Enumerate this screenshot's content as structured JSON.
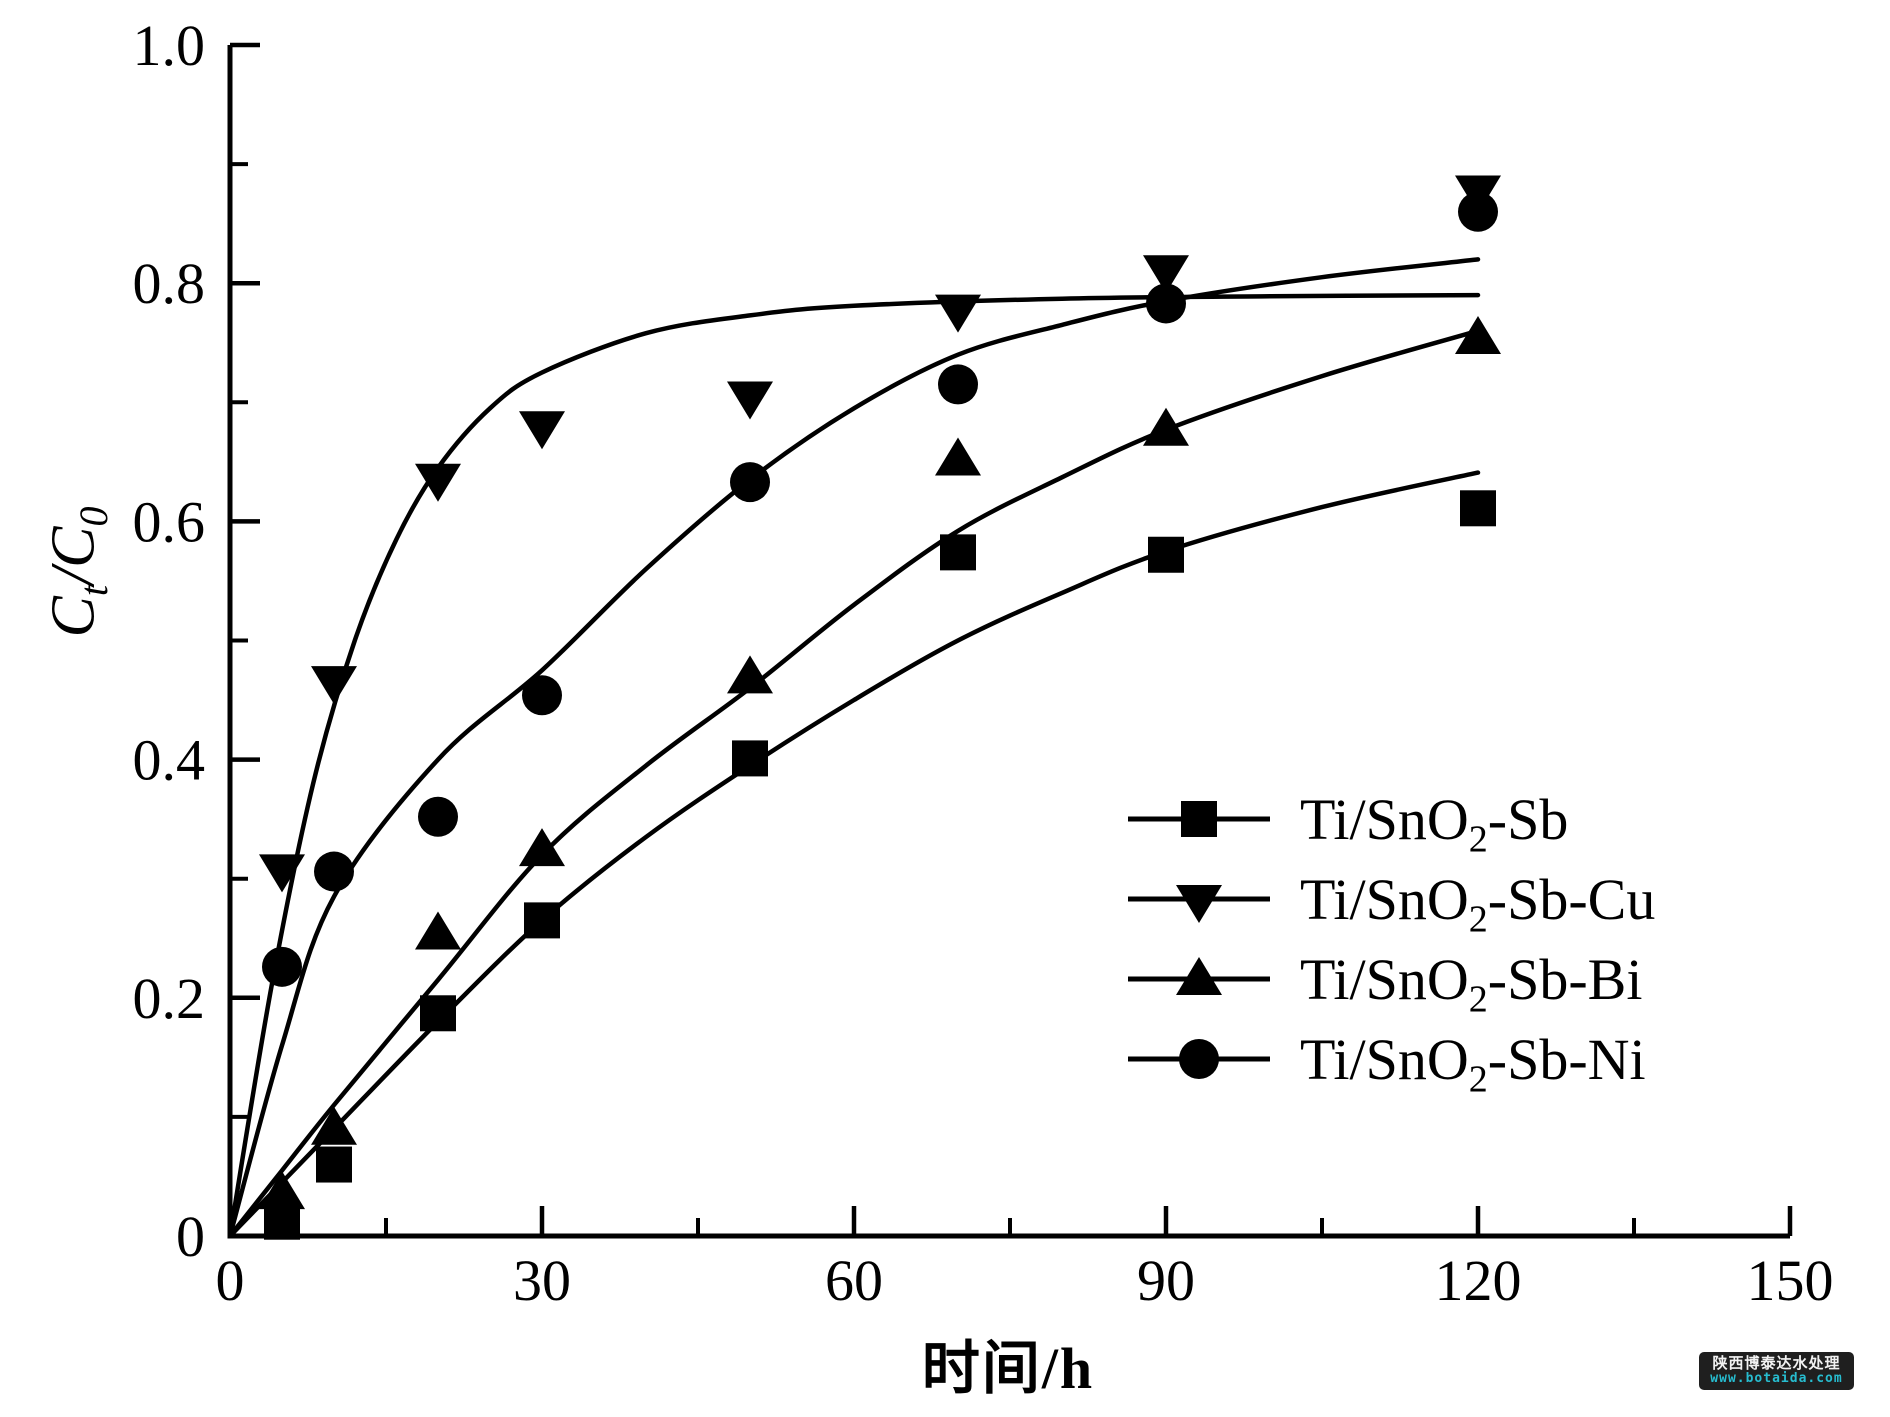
{
  "figure": {
    "background": "#ffffff",
    "ink": "#000000"
  },
  "chart_data": {
    "type": "scatter",
    "title": "",
    "xlabel": "时间/h",
    "ylabel": "Ct/C0",
    "ylabel_parts": {
      "c1": "C",
      "sub1": "t",
      "mid": "/C",
      "sub2": "0"
    },
    "xlim": [
      0,
      150
    ],
    "ylim": [
      0,
      1.0
    ],
    "grid": false,
    "legend_position": "inside-right-middle",
    "xticks": {
      "values": [
        0,
        30,
        60,
        90,
        120,
        150
      ],
      "labels": [
        "0",
        "30",
        "60",
        "90",
        "120",
        "150"
      ],
      "minor": [
        15,
        45,
        75,
        105,
        135
      ]
    },
    "yticks": {
      "values": [
        0,
        0.2,
        0.4,
        0.6,
        0.8,
        1.0
      ],
      "labels": [
        "0",
        "0.2",
        "0.4",
        "0.6",
        "0.8",
        "1.0"
      ],
      "minor": [
        0.1,
        0.3,
        0.5,
        0.7,
        0.9
      ]
    },
    "series": [
      {
        "name": "Ti/SnO2-Sb",
        "marker": "square",
        "label_parts": {
          "main": "Ti/SnO",
          "sub": "2",
          "suffix": "-Sb"
        },
        "points": [
          [
            5,
            0.012
          ],
          [
            10,
            0.06
          ],
          [
            20,
            0.187
          ],
          [
            30,
            0.265
          ],
          [
            50,
            0.401
          ],
          [
            70,
            0.574
          ],
          [
            90,
            0.572
          ],
          [
            120,
            0.611
          ]
        ],
        "fit": [
          [
            0,
            0
          ],
          [
            5,
            0.045
          ],
          [
            10,
            0.09
          ],
          [
            20,
            0.18
          ],
          [
            30,
            0.265
          ],
          [
            40,
            0.335
          ],
          [
            50,
            0.395
          ],
          [
            60,
            0.45
          ],
          [
            70,
            0.5
          ],
          [
            80,
            0.54
          ],
          [
            90,
            0.575
          ],
          [
            105,
            0.612
          ],
          [
            120,
            0.641
          ]
        ]
      },
      {
        "name": "Ti/SnO2-Sb-Cu",
        "marker": "triangle-down",
        "label_parts": {
          "main": "Ti/SnO",
          "sub": "2",
          "suffix": "-Sb-Cu"
        },
        "points": [
          [
            5,
            0.307
          ],
          [
            10,
            0.465
          ],
          [
            20,
            0.635
          ],
          [
            30,
            0.679
          ],
          [
            50,
            0.704
          ],
          [
            70,
            0.777
          ],
          [
            90,
            0.81
          ],
          [
            120,
            0.877
          ]
        ],
        "fit": [
          [
            0,
            0
          ],
          [
            4,
            0.21
          ],
          [
            8,
            0.38
          ],
          [
            12,
            0.5
          ],
          [
            16,
            0.585
          ],
          [
            20,
            0.645
          ],
          [
            25,
            0.695
          ],
          [
            30,
            0.725
          ],
          [
            40,
            0.758
          ],
          [
            50,
            0.773
          ],
          [
            60,
            0.781
          ],
          [
            80,
            0.787
          ],
          [
            100,
            0.789
          ],
          [
            120,
            0.79
          ]
        ]
      },
      {
        "name": "Ti/SnO2-Sb-Bi",
        "marker": "triangle-up",
        "label_parts": {
          "main": "Ti/SnO",
          "sub": "2",
          "suffix": "-Sb-Bi"
        },
        "points": [
          [
            5,
            0.036
          ],
          [
            10,
            0.09
          ],
          [
            20,
            0.254
          ],
          [
            30,
            0.324
          ],
          [
            50,
            0.469
          ],
          [
            70,
            0.652
          ],
          [
            90,
            0.677
          ],
          [
            120,
            0.754
          ]
        ],
        "fit": [
          [
            0,
            0
          ],
          [
            5,
            0.055
          ],
          [
            10,
            0.11
          ],
          [
            20,
            0.215
          ],
          [
            30,
            0.32
          ],
          [
            40,
            0.395
          ],
          [
            50,
            0.46
          ],
          [
            60,
            0.53
          ],
          [
            70,
            0.592
          ],
          [
            80,
            0.637
          ],
          [
            90,
            0.677
          ],
          [
            105,
            0.722
          ],
          [
            120,
            0.76
          ]
        ]
      },
      {
        "name": "Ti/SnO2-Sb-Ni",
        "marker": "circle",
        "label_parts": {
          "main": "Ti/SnO",
          "sub": "2",
          "suffix": "-Sb-Ni"
        },
        "points": [
          [
            5,
            0.226
          ],
          [
            10,
            0.306
          ],
          [
            20,
            0.352
          ],
          [
            30,
            0.454
          ],
          [
            50,
            0.633
          ],
          [
            70,
            0.715
          ],
          [
            90,
            0.783
          ],
          [
            120,
            0.86
          ]
        ],
        "fit": [
          [
            0,
            0
          ],
          [
            5,
            0.16
          ],
          [
            10,
            0.285
          ],
          [
            20,
            0.4
          ],
          [
            30,
            0.475
          ],
          [
            40,
            0.56
          ],
          [
            50,
            0.635
          ],
          [
            60,
            0.695
          ],
          [
            70,
            0.74
          ],
          [
            80,
            0.765
          ],
          [
            90,
            0.785
          ],
          [
            105,
            0.805
          ],
          [
            120,
            0.82
          ]
        ]
      }
    ]
  },
  "watermark": {
    "line1": "陕西博泰达水处理",
    "line2": "www.botaida.com",
    "bg_color": "#1f1f1f",
    "text_color": "#f2f2f2",
    "accent_color": "#27bccf"
  }
}
